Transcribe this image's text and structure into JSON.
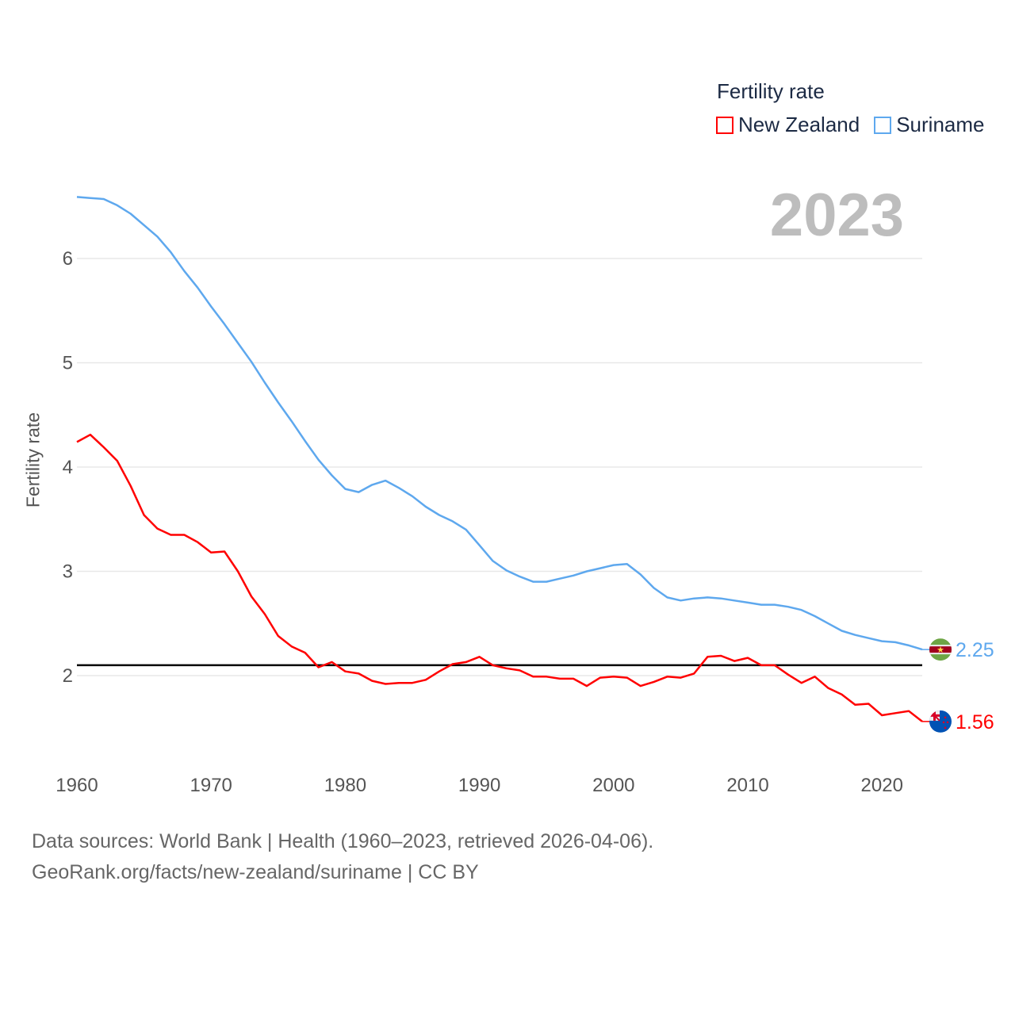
{
  "chart_data": {
    "type": "line",
    "title": "2023",
    "legend_title": "Fertility rate",
    "legend_position": "top-right",
    "xlabel": "",
    "ylabel": "Fertility rate",
    "xlim": [
      1960,
      2023
    ],
    "ylim": [
      1.4,
      6.7
    ],
    "x_ticks": [
      1960,
      1970,
      1980,
      1990,
      2000,
      2010,
      2020
    ],
    "y_ticks": [
      2,
      3,
      4,
      5,
      6
    ],
    "grid": true,
    "reference_line": 2.1,
    "x": [
      1960,
      1961,
      1962,
      1963,
      1964,
      1965,
      1966,
      1967,
      1968,
      1969,
      1970,
      1971,
      1972,
      1973,
      1974,
      1975,
      1976,
      1977,
      1978,
      1979,
      1980,
      1981,
      1982,
      1983,
      1984,
      1985,
      1986,
      1987,
      1988,
      1989,
      1990,
      1991,
      1992,
      1993,
      1994,
      1995,
      1996,
      1997,
      1998,
      1999,
      2000,
      2001,
      2002,
      2003,
      2004,
      2005,
      2006,
      2007,
      2008,
      2009,
      2010,
      2011,
      2012,
      2013,
      2014,
      2015,
      2016,
      2017,
      2018,
      2019,
      2020,
      2021,
      2022,
      2023
    ],
    "series": [
      {
        "name": "New Zealand",
        "color": "#ff0000",
        "end_label": "1.56",
        "values": [
          4.24,
          4.31,
          4.19,
          4.06,
          3.82,
          3.54,
          3.41,
          3.35,
          3.35,
          3.28,
          3.18,
          3.19,
          3.0,
          2.76,
          2.59,
          2.38,
          2.28,
          2.22,
          2.08,
          2.13,
          2.04,
          2.02,
          1.95,
          1.92,
          1.93,
          1.93,
          1.96,
          2.04,
          2.11,
          2.13,
          2.18,
          2.1,
          2.07,
          2.05,
          1.99,
          1.99,
          1.97,
          1.97,
          1.9,
          1.98,
          1.99,
          1.98,
          1.9,
          1.94,
          1.99,
          1.98,
          2.02,
          2.18,
          2.19,
          2.14,
          2.17,
          2.1,
          2.1,
          2.01,
          1.93,
          1.99,
          1.88,
          1.82,
          1.72,
          1.73,
          1.62,
          1.64,
          1.66,
          1.56
        ]
      },
      {
        "name": "Suriname",
        "color": "#5ea8ee",
        "end_label": "2.25",
        "values": [
          6.59,
          6.58,
          6.57,
          6.51,
          6.43,
          6.32,
          6.21,
          6.06,
          5.88,
          5.72,
          5.54,
          5.37,
          5.19,
          5.01,
          4.81,
          4.62,
          4.44,
          4.25,
          4.07,
          3.92,
          3.79,
          3.76,
          3.83,
          3.87,
          3.8,
          3.72,
          3.62,
          3.54,
          3.48,
          3.4,
          3.25,
          3.1,
          3.01,
          2.95,
          2.9,
          2.9,
          2.93,
          2.96,
          3.0,
          3.03,
          3.06,
          3.07,
          2.97,
          2.84,
          2.75,
          2.72,
          2.74,
          2.75,
          2.74,
          2.72,
          2.7,
          2.68,
          2.68,
          2.66,
          2.63,
          2.57,
          2.5,
          2.43,
          2.39,
          2.36,
          2.33,
          2.32,
          2.29,
          2.25
        ]
      }
    ]
  },
  "footer": {
    "line1": "Data sources: World Bank | Health (1960–2023, retrieved 2026-04-06).",
    "line2": "GeoRank.org/facts/new-zealand/suriname | CC BY"
  }
}
